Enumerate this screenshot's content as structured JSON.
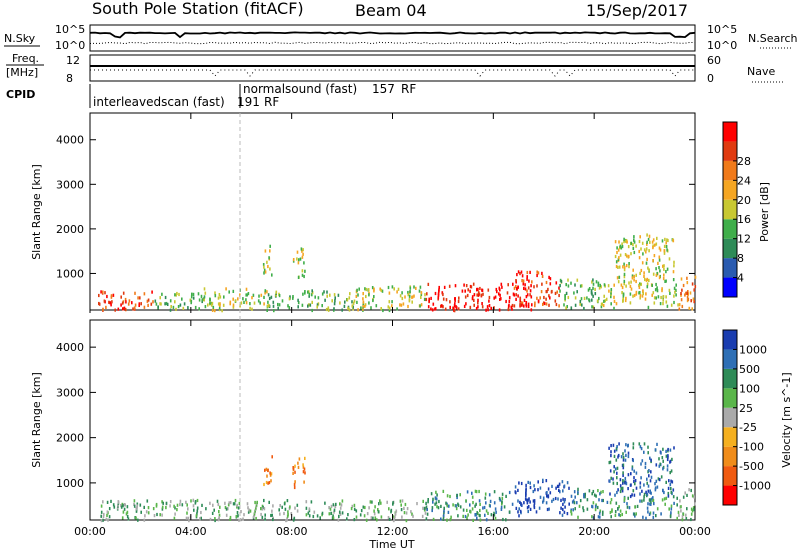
{
  "header": {
    "station": "South Pole Station (fitACF)",
    "beam": "Beam 04",
    "date": "15/Sep/2017"
  },
  "nsky_panel": {
    "left_label": "N.Sky",
    "left_ticks": [
      "10^5",
      "10^0"
    ],
    "right_label": "N.Search",
    "right_ticks": [
      "10^5",
      "10^0"
    ]
  },
  "freq_panel": {
    "left_label_1": "Freq.",
    "left_label_2": "[MHz]",
    "left_ticks": [
      "12",
      "8"
    ],
    "right_label": "Nave",
    "right_ticks": [
      "60",
      "0"
    ]
  },
  "cpid_panel": {
    "label": "CPID",
    "modes": [
      {
        "name": "interleavedscan (fast)",
        "code": "191",
        "suffix": "RF"
      },
      {
        "name": "normalsound (fast)",
        "code": "157",
        "suffix": "RF"
      }
    ]
  },
  "time_axis": {
    "label": "Time UT",
    "ticks": [
      "00:00",
      "04:00",
      "08:00",
      "12:00",
      "16:00",
      "20:00",
      "00:00"
    ]
  },
  "chart_data": [
    {
      "type": "heatmap",
      "title": "",
      "xlabel": "",
      "ylabel": "Slant Range [km]",
      "xlim": [
        0,
        24
      ],
      "ylim": [
        180,
        4600
      ],
      "yticks": [
        "1000",
        "2000",
        "3000",
        "4000"
      ],
      "colorbar": {
        "label": "Power [dB]",
        "ticks": [
          "4",
          "8",
          "12",
          "16",
          "20",
          "24",
          "28"
        ],
        "colors": [
          "#0000ff",
          "#2a5bb0",
          "#2e8b57",
          "#3fae4a",
          "#c8c832",
          "#f5a623",
          "#f07a1a",
          "#e03a10",
          "#ff0000"
        ]
      },
      "regions": [
        {
          "t0": 0.3,
          "t1": 2.5,
          "r0": 200,
          "r1": 650,
          "level": 7
        },
        {
          "t0": 2.5,
          "t1": 4.5,
          "r0": 200,
          "r1": 600,
          "level": 3
        },
        {
          "t0": 4.5,
          "t1": 7.0,
          "r0": 200,
          "r1": 700,
          "level": 4
        },
        {
          "t0": 6.8,
          "t1": 7.2,
          "r0": 1000,
          "r1": 1650,
          "level": 4
        },
        {
          "t0": 8.0,
          "t1": 8.5,
          "r0": 900,
          "r1": 1600,
          "level": 4
        },
        {
          "t0": 7.0,
          "t1": 10.5,
          "r0": 200,
          "r1": 650,
          "level": 3
        },
        {
          "t0": 10.5,
          "t1": 13.3,
          "r0": 200,
          "r1": 750,
          "level": 4
        },
        {
          "t0": 13.3,
          "t1": 17.5,
          "r0": 200,
          "r1": 800,
          "level": 8
        },
        {
          "t0": 16.8,
          "t1": 18.6,
          "r0": 300,
          "r1": 1100,
          "level": 7
        },
        {
          "t0": 18.6,
          "t1": 20.2,
          "r0": 250,
          "r1": 900,
          "level": 3
        },
        {
          "t0": 20.2,
          "t1": 23.3,
          "r0": 250,
          "r1": 800,
          "level": 4
        },
        {
          "t0": 20.8,
          "t1": 23.2,
          "r0": 800,
          "r1": 1900,
          "level": 4
        },
        {
          "t0": 23.3,
          "t1": 24.0,
          "r0": 200,
          "r1": 1000,
          "level": 6
        }
      ]
    },
    {
      "type": "heatmap",
      "title": "",
      "xlabel": "Time UT",
      "ylabel": "Slant Range [km]",
      "xlim": [
        0,
        24
      ],
      "ylim": [
        180,
        4600
      ],
      "yticks": [
        "1000",
        "2000",
        "3000",
        "4000"
      ],
      "colorbar": {
        "label": "Velocity [m s^-1]",
        "ticks": [
          "1000",
          "500",
          "100",
          "25",
          "-25",
          "-100",
          "-500",
          "-1000"
        ],
        "colors": [
          "#1a3db0",
          "#2e6fb5",
          "#2e8b57",
          "#5ab64a",
          "#aaaaaa",
          "#f5b020",
          "#f08c1a",
          "#f05a10",
          "#ff0000"
        ]
      },
      "regions": [
        {
          "t0": 0.3,
          "t1": 5.0,
          "r0": 200,
          "r1": 650,
          "level": 3
        },
        {
          "t0": 6.8,
          "t1": 7.2,
          "r0": 1000,
          "r1": 1650,
          "level": 6
        },
        {
          "t0": 8.0,
          "t1": 8.5,
          "r0": 900,
          "r1": 1600,
          "level": 6
        },
        {
          "t0": 5.0,
          "t1": 13.3,
          "r0": 200,
          "r1": 650,
          "level": 3
        },
        {
          "t0": 13.3,
          "t1": 16.8,
          "r0": 200,
          "r1": 850,
          "level": 2
        },
        {
          "t0": 16.8,
          "t1": 19.0,
          "r0": 300,
          "r1": 1100,
          "level": 0
        },
        {
          "t0": 19.0,
          "t1": 20.5,
          "r0": 250,
          "r1": 900,
          "level": 2
        },
        {
          "t0": 20.5,
          "t1": 23.2,
          "r0": 700,
          "r1": 1900,
          "level": 1
        },
        {
          "t0": 20.5,
          "t1": 23.3,
          "r0": 250,
          "r1": 700,
          "level": 2
        },
        {
          "t0": 23.3,
          "t1": 24.0,
          "r0": 200,
          "r1": 900,
          "level": 3
        }
      ]
    }
  ]
}
